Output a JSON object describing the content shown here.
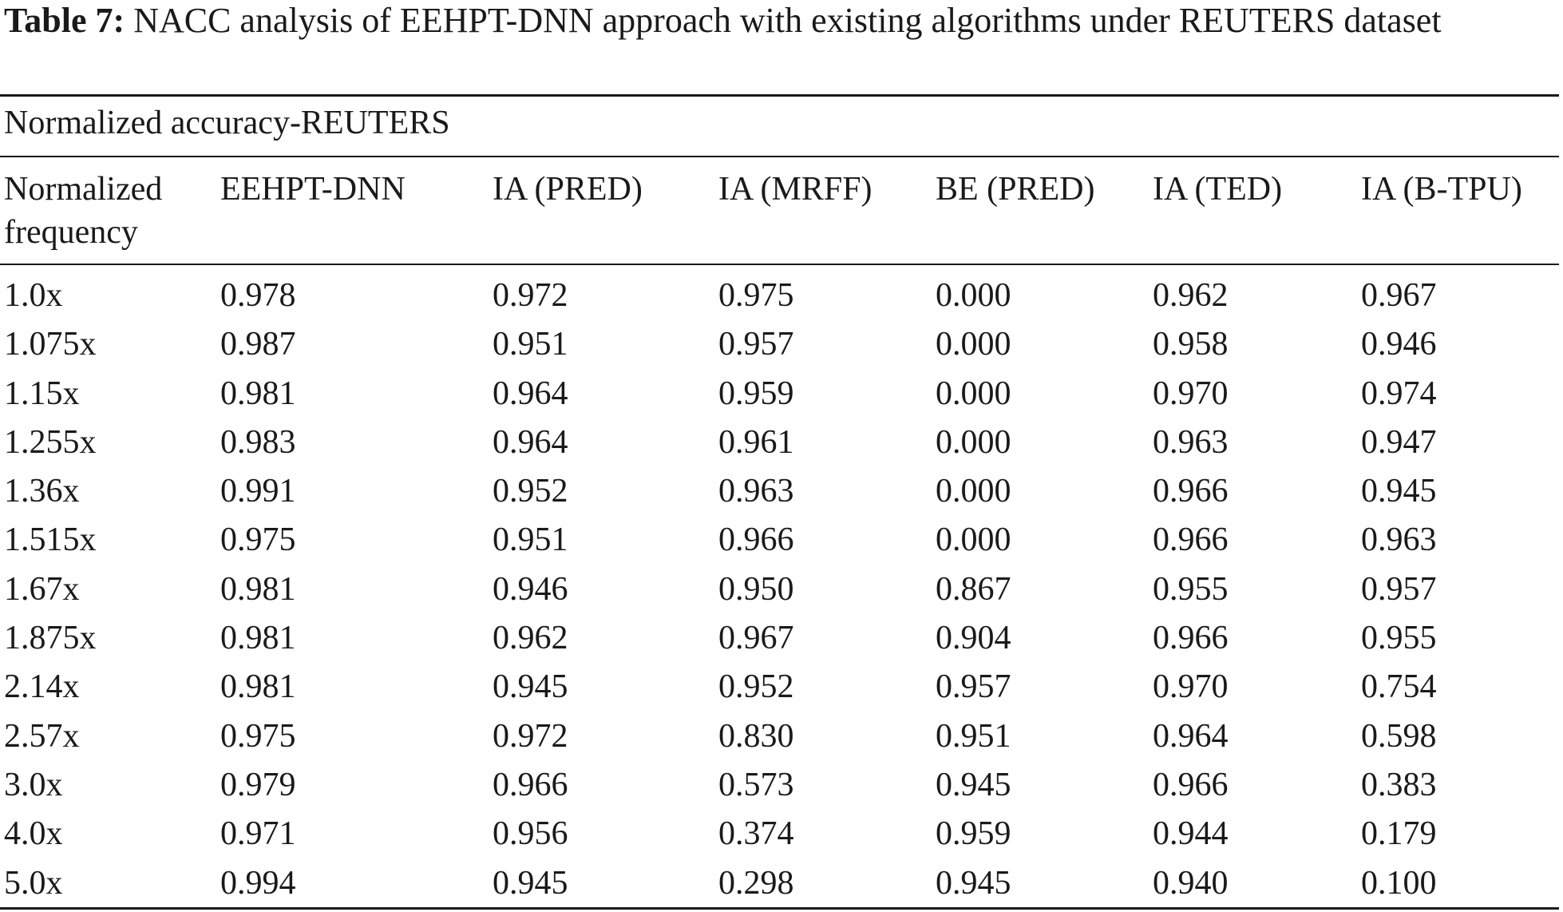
{
  "caption": {
    "label": "Table 7:",
    "text": "NACC analysis of EEHPT-DNN approach with existing algorithms under REUTERS dataset"
  },
  "table": {
    "group_title": "Normalized accuracy-REUTERS",
    "headers": [
      "Normalized frequency",
      "EEHPT-DNN",
      "IA (PRED)",
      "IA (MRFF)",
      "BE (PRED)",
      "IA (TED)",
      "IA (B-TPU)"
    ],
    "rows": [
      [
        "1.0x",
        "0.978",
        "0.972",
        "0.975",
        "0.000",
        "0.962",
        "0.967"
      ],
      [
        "1.075x",
        "0.987",
        "0.951",
        "0.957",
        "0.000",
        "0.958",
        "0.946"
      ],
      [
        "1.15x",
        "0.981",
        "0.964",
        "0.959",
        "0.000",
        "0.970",
        "0.974"
      ],
      [
        "1.255x",
        "0.983",
        "0.964",
        "0.961",
        "0.000",
        "0.963",
        "0.947"
      ],
      [
        "1.36x",
        "0.991",
        "0.952",
        "0.963",
        "0.000",
        "0.966",
        "0.945"
      ],
      [
        "1.515x",
        "0.975",
        "0.951",
        "0.966",
        "0.000",
        "0.966",
        "0.963"
      ],
      [
        "1.67x",
        "0.981",
        "0.946",
        "0.950",
        "0.867",
        "0.955",
        "0.957"
      ],
      [
        "1.875x",
        "0.981",
        "0.962",
        "0.967",
        "0.904",
        "0.966",
        "0.955"
      ],
      [
        "2.14x",
        "0.981",
        "0.945",
        "0.952",
        "0.957",
        "0.970",
        "0.754"
      ],
      [
        "2.57x",
        "0.975",
        "0.972",
        "0.830",
        "0.951",
        "0.964",
        "0.598"
      ],
      [
        "3.0x",
        "0.979",
        "0.966",
        "0.573",
        "0.945",
        "0.966",
        "0.383"
      ],
      [
        "4.0x",
        "0.971",
        "0.956",
        "0.374",
        "0.959",
        "0.944",
        "0.179"
      ],
      [
        "5.0x",
        "0.994",
        "0.945",
        "0.298",
        "0.945",
        "0.940",
        "0.100"
      ]
    ]
  }
}
